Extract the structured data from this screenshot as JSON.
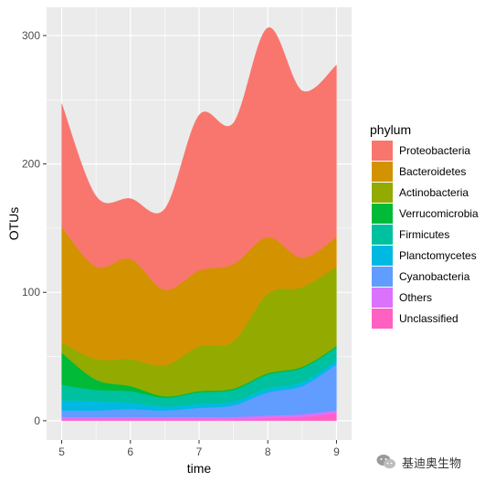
{
  "chart_data": {
    "type": "area",
    "stacked": true,
    "xlabel": "time",
    "ylabel": "OTUs",
    "legend_title": "phylum",
    "legend_position": "right",
    "grid": true,
    "xlim": [
      4.78,
      9.22
    ],
    "ylim": [
      -15,
      322
    ],
    "x_ticks": [
      5,
      6,
      7,
      8,
      9
    ],
    "y_ticks": [
      0,
      100,
      200,
      300
    ],
    "x": [
      5,
      5.5,
      6,
      6.5,
      7,
      7.5,
      8,
      8.5,
      9
    ],
    "series": [
      {
        "name": "Unclassified",
        "color": "#FF61C3",
        "values": [
          1,
          1,
          1,
          1,
          1,
          1,
          2,
          3,
          6
        ]
      },
      {
        "name": "Others",
        "color": "#DB72FB",
        "values": [
          2,
          2,
          2,
          2,
          2,
          2,
          2,
          2,
          2
        ]
      },
      {
        "name": "Cyanobacteria",
        "color": "#619CFF",
        "values": [
          5,
          5,
          6,
          5,
          7,
          9,
          18,
          22,
          36
        ]
      },
      {
        "name": "Planctomycetes",
        "color": "#00B9E3",
        "values": [
          8,
          7,
          5,
          3,
          3,
          3,
          3,
          3,
          3
        ]
      },
      {
        "name": "Firmicutes",
        "color": "#00C19F",
        "values": [
          12,
          9,
          9,
          7,
          9,
          9,
          11,
          11,
          10
        ]
      },
      {
        "name": "Verrucomicrobia",
        "color": "#00BA38",
        "values": [
          25,
          8,
          4,
          1,
          1,
          1,
          1,
          1,
          1
        ]
      },
      {
        "name": "Actinobacteria",
        "color": "#93AA00",
        "values": [
          8,
          16,
          21,
          24,
          35,
          37,
          62,
          62,
          62
        ]
      },
      {
        "name": "Bacteroidetes",
        "color": "#D39200",
        "values": [
          90,
          72,
          78,
          59,
          59,
          60,
          44,
          23,
          23
        ]
      },
      {
        "name": "Proteobacteria",
        "color": "#F8766D",
        "values": [
          96,
          55,
          47,
          63,
          121,
          110,
          163,
          130,
          134
        ]
      }
    ],
    "legend_order": [
      "Proteobacteria",
      "Bacteroidetes",
      "Actinobacteria",
      "Verrucomicrobia",
      "Firmicutes",
      "Planctomycetes",
      "Cyanobacteria",
      "Others",
      "Unclassified"
    ],
    "panel_background": "#EBEBEB",
    "grid_color": "#FFFFFF"
  },
  "watermark": {
    "text": "基迪奥生物",
    "icon": "wechat-icon"
  }
}
